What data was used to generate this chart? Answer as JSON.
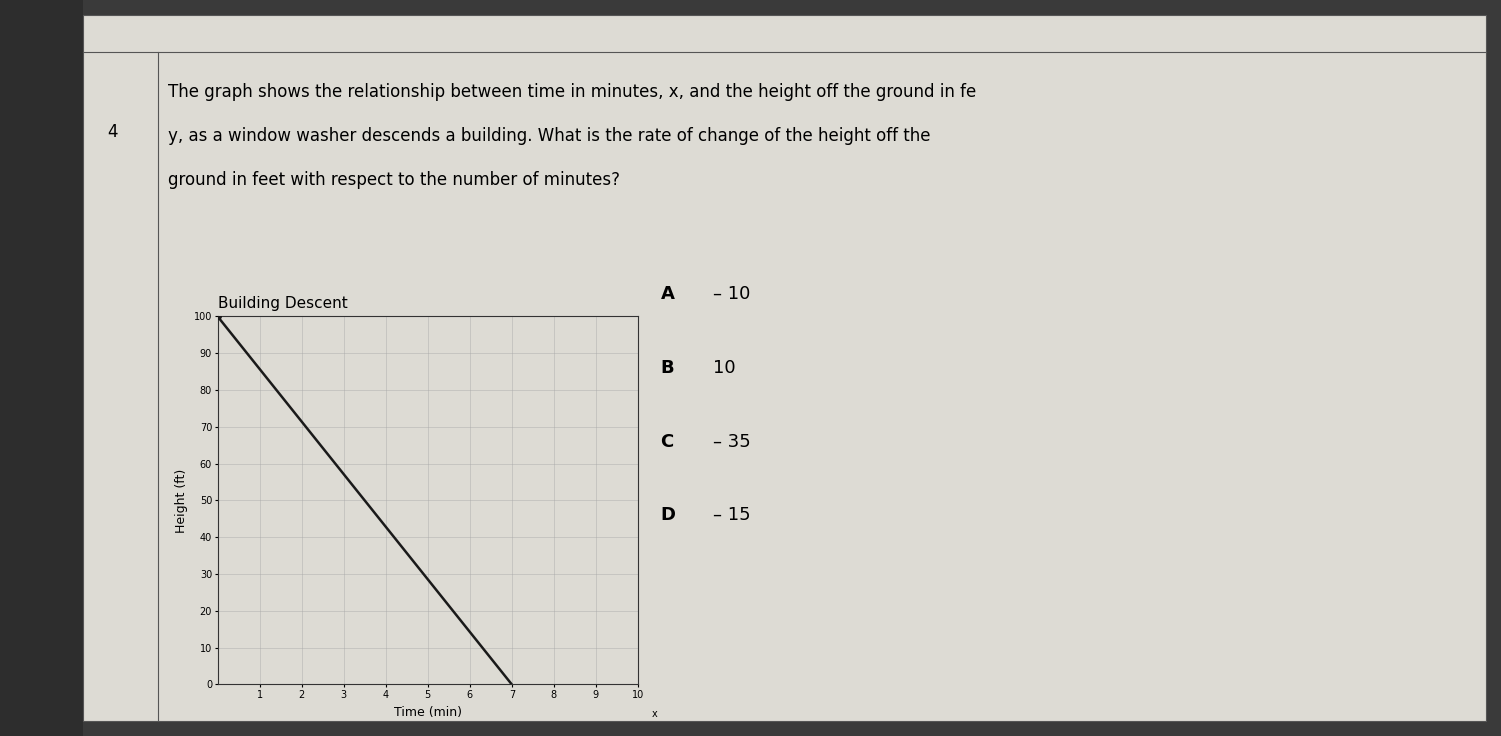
{
  "title": "Building Descent",
  "xlabel": "Time (min)",
  "ylabel": "Height (ft)",
  "question_number": "4",
  "question_text_line1": "The graph shows the relationship between time in minutes, x, and the height off the ground in fe",
  "question_text_line2": "y, as a window washer descends a building. What is the rate of change of the height off the",
  "question_text_line3": "ground in feet with respect to the number of minutes?",
  "answer_options": [
    {
      "label": "A",
      "text": "– 10"
    },
    {
      "label": "B",
      "text": "10"
    },
    {
      "label": "C",
      "text": "– 35"
    },
    {
      "label": "D",
      "text": "– 15"
    }
  ],
  "line_x": [
    0,
    7
  ],
  "line_y": [
    100,
    0
  ],
  "xlim": [
    0,
    10
  ],
  "ylim": [
    0,
    100
  ],
  "x_ticks": [
    1,
    2,
    3,
    4,
    5,
    6,
    7,
    8,
    9,
    10
  ],
  "y_ticks": [
    0,
    10,
    20,
    30,
    40,
    50,
    60,
    70,
    80,
    90,
    100
  ],
  "line_color": "#1a1a1a",
  "line_width": 1.8,
  "grid_color": "#aaaaaa",
  "outer_bg": "#3a3a3a",
  "left_margin_bg": "#2a2a2a",
  "paper_color": "#dddbd4",
  "title_fontsize": 11,
  "axis_label_fontsize": 9,
  "tick_fontsize": 7,
  "question_fontsize": 12,
  "answer_fontsize": 13,
  "qnum_fontsize": 12
}
